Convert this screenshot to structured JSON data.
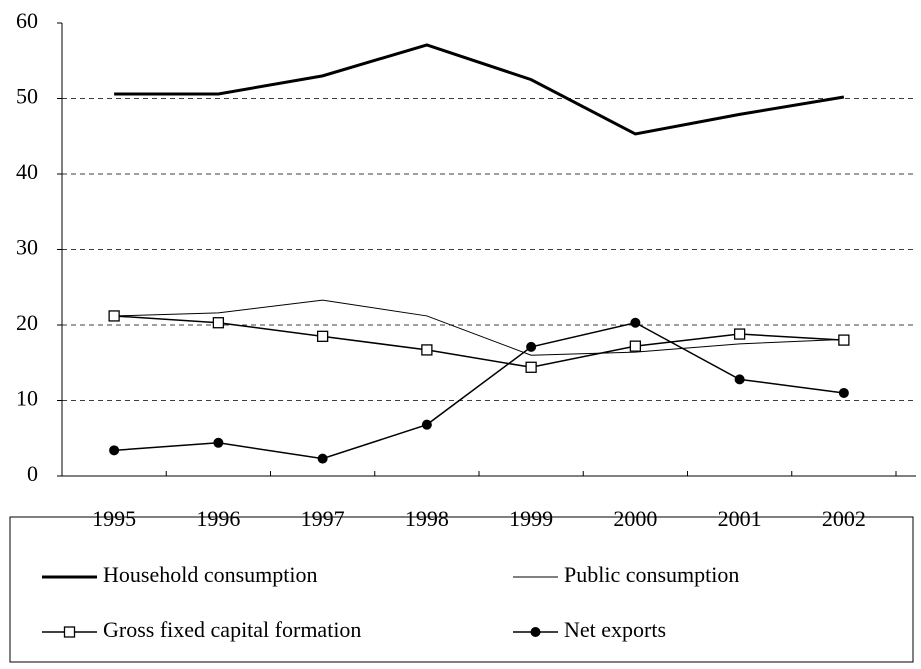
{
  "chart_data": {
    "type": "line",
    "categories": [
      "1995",
      "1996",
      "1997",
      "1998",
      "1999",
      "2000",
      "2001",
      "2002"
    ],
    "series": [
      {
        "name": "Household consumption",
        "color": "#000000",
        "values": [
          50.6,
          50.6,
          53.0,
          57.1,
          52.5,
          45.3,
          47.9,
          50.2
        ]
      },
      {
        "name": "Public consumption",
        "color": "#000000",
        "values": [
          21.2,
          21.6,
          23.3,
          21.2,
          16.0,
          16.4,
          17.5,
          18.1
        ]
      },
      {
        "name": "Gross fixed capital formation",
        "color": "#000000",
        "values": [
          21.2,
          20.3,
          18.5,
          16.7,
          14.4,
          17.2,
          18.8,
          18.0
        ]
      },
      {
        "name": "Net exports",
        "color": "#000000",
        "values": [
          3.4,
          4.4,
          2.3,
          6.8,
          17.1,
          20.3,
          12.8,
          11.0
        ]
      }
    ],
    "ylim": [
      0,
      60
    ],
    "yticks": [
      0,
      10,
      20,
      30,
      40,
      50,
      60
    ],
    "grid": true
  }
}
